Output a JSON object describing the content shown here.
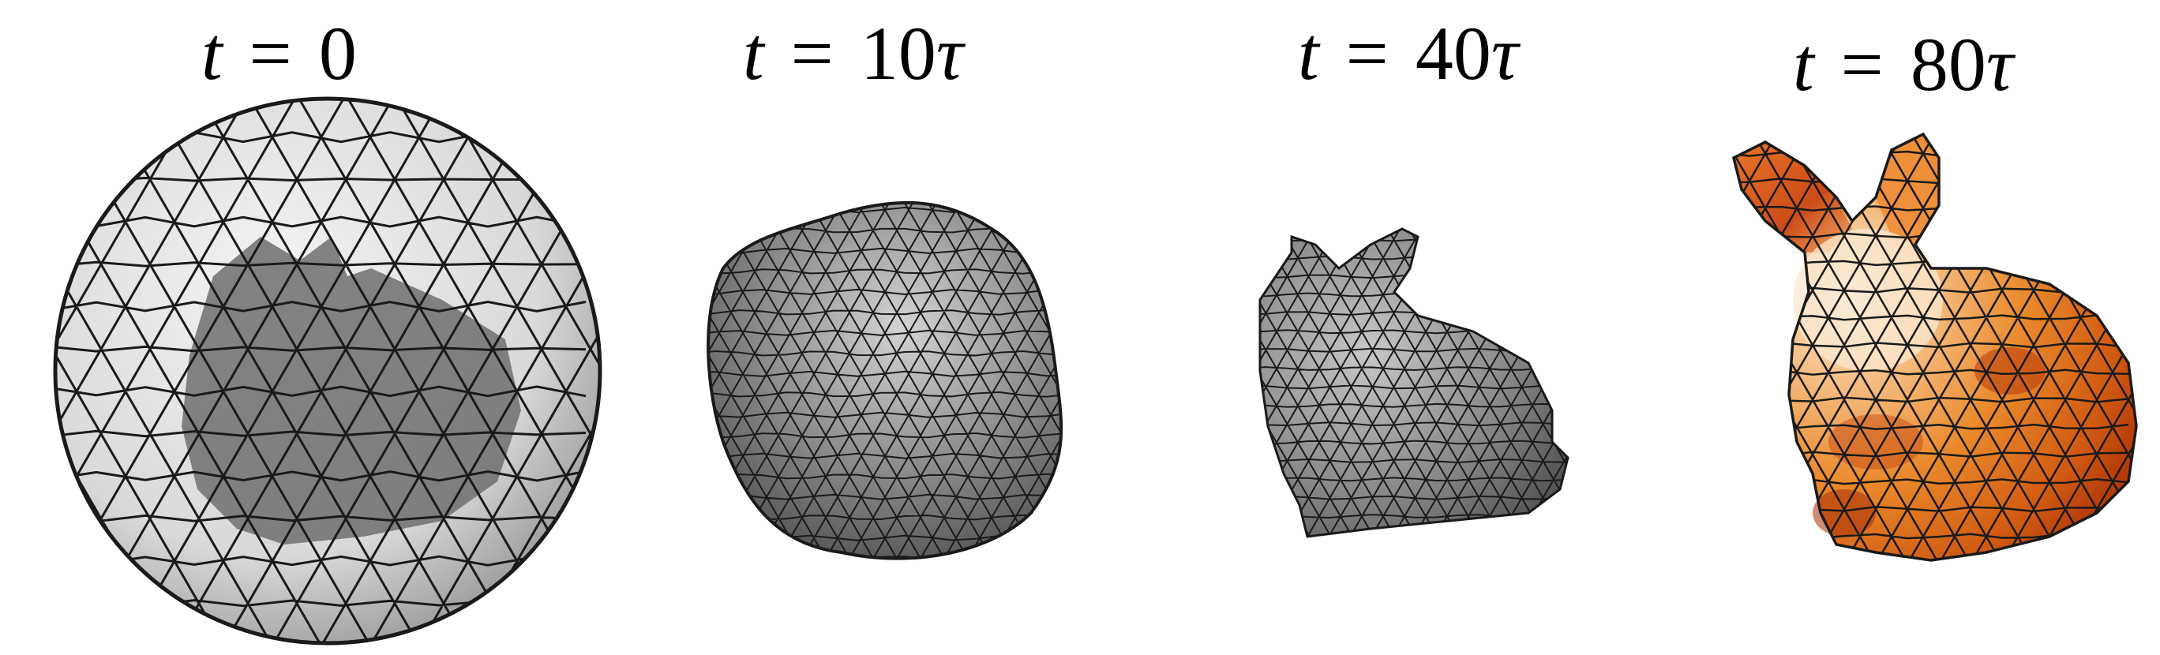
{
  "panels": [
    {
      "time_var": "t",
      "equals": "=",
      "value": "0",
      "shape": "sphere enclosing bunny",
      "color": "#bdbdbd"
    },
    {
      "time_var": "t",
      "equals": "=",
      "value": "10",
      "unit": "τ",
      "shape": "deformed blob",
      "color": "#8c8c8c"
    },
    {
      "time_var": "t",
      "equals": "=",
      "value": "40",
      "unit": "τ",
      "shape": "small bunny",
      "color": "#8a8a8a"
    },
    {
      "time_var": "t",
      "equals": "=",
      "value": "80",
      "unit": "τ",
      "shape": "orange bunny",
      "color": "#e5832a"
    }
  ],
  "colors": {
    "mesh_lines": "#1a1a1a",
    "orange_light": "#f6c08a",
    "orange_dark": "#c2400c",
    "cream": "#f7e8cf"
  }
}
